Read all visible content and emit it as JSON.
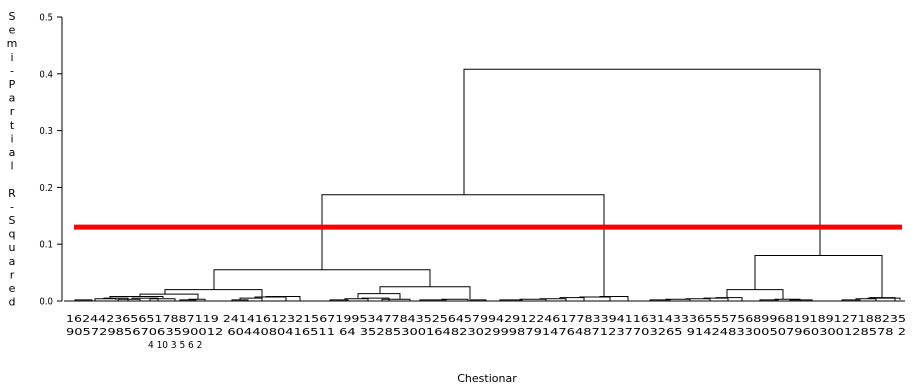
{
  "chart_data": {
    "type": "dendrogram",
    "xlabel": "Chestionar",
    "ylabel": "Semi-Partial R-Squared",
    "ylim": [
      0,
      0.5
    ],
    "yticks": [
      "0.0",
      "0.1",
      "0.2",
      "0.3",
      "0.4",
      "0.5"
    ],
    "cut_line": {
      "y": 0.13,
      "color": "#ff0000"
    },
    "leaf_label_rows": [
      "1624423656517887119 2414161232156719953477843525645799429122461778339411631433365557568996819189127188235",
      "9057298567063590012 6044080416511 64 352853001648230299987914764871237703265 9142483300507960300128578 2",
      "4 10 3 5 6 2"
    ],
    "merges": [
      {
        "left": 0.0556,
        "right": 0.0556,
        "height": 0.003,
        "cluster": "A"
      },
      {
        "left": 0.0,
        "right": 0.0,
        "height": 0.007
      },
      {
        "cluster_A": {
          "height": 0.02,
          "children": [
            "A1",
            "A2"
          ]
        }
      },
      {
        "cluster_B": {
          "height": 0.025,
          "children": [
            "B1",
            "B2"
          ]
        }
      },
      {
        "height_AB": 0.055
      },
      {
        "height_C": 0.008
      },
      {
        "height_ABC": 0.187
      },
      {
        "height_D": 0.02
      },
      {
        "height_E": 0.005
      },
      {
        "height_DE": 0.08
      },
      {
        "root": 0.408
      }
    ],
    "cluster_heights": {
      "group1_left": 0.02,
      "group1_right": 0.025,
      "group1": 0.055,
      "group2": 0.008,
      "groups_1_2": 0.187,
      "group3_left": 0.02,
      "group3_right": 0.005,
      "group3": 0.08,
      "root": 0.408
    }
  }
}
